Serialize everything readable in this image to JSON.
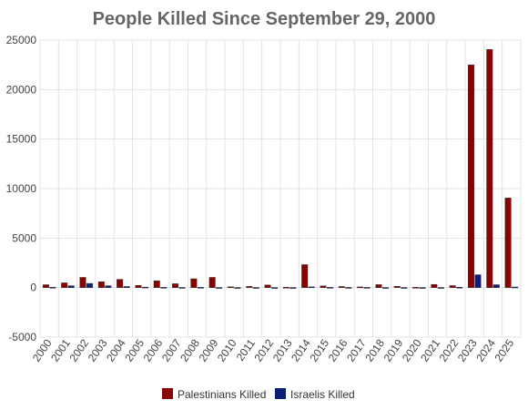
{
  "chart_data": {
    "type": "bar",
    "title": "People Killed Since September 29, 2000",
    "xlabel": "",
    "ylabel": "",
    "ylim": [
      -5000,
      25000
    ],
    "yticks": [
      -5000,
      0,
      5000,
      10000,
      15000,
      20000,
      25000
    ],
    "grid": true,
    "legend_position": "bottom",
    "categories": [
      "2000",
      "2001",
      "2002",
      "2003",
      "2004",
      "2005",
      "2006",
      "2007",
      "2008",
      "2009",
      "2010",
      "2011",
      "2012",
      "2013",
      "2014",
      "2015",
      "2016",
      "2017",
      "2018",
      "2019",
      "2020",
      "2021",
      "2022",
      "2023",
      "2024",
      "2025"
    ],
    "series": [
      {
        "name": "Palestinians Killed",
        "color": "#8b0000",
        "values": [
          290,
          480,
          1030,
          590,
          830,
          220,
          690,
          390,
          890,
          1030,
          80,
          120,
          260,
          40,
          2320,
          170,
          110,
          70,
          300,
          130,
          30,
          320,
          200,
          22500,
          24050,
          9050
        ]
      },
      {
        "name": "Israelis Killed",
        "color": "#0b1f7a",
        "values": [
          40,
          190,
          420,
          190,
          110,
          50,
          30,
          20,
          30,
          10,
          10,
          10,
          10,
          10,
          80,
          30,
          20,
          20,
          10,
          10,
          10,
          10,
          40,
          1300,
          290,
          60
        ]
      }
    ]
  }
}
